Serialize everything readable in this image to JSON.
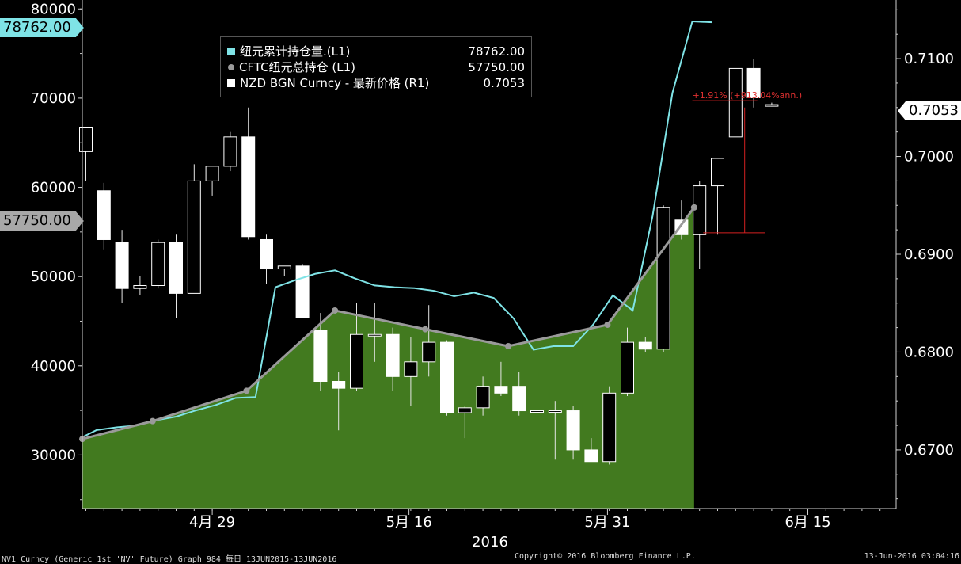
{
  "chart_data": {
    "type": "candlestick-line-area",
    "x_tick_labels": [
      "4月 29",
      "5月 16",
      "5月 31",
      "6月 15"
    ],
    "x_year_label": "2016",
    "left_axis": {
      "ticks": [
        "30000",
        "40000",
        "50000",
        "60000",
        "70000",
        "80000"
      ],
      "range": [
        24000,
        81000
      ]
    },
    "right_axis": {
      "ticks": [
        "0.6700",
        "0.6800",
        "0.6900",
        "0.7000",
        "0.7100"
      ],
      "range": [
        0.664,
        0.716
      ]
    },
    "legend": [
      {
        "name": "纽元累计持仓量.(L1)",
        "value": "78762.00",
        "color": "#7fe3e6",
        "marker": "square"
      },
      {
        "name": "CFTC纽元总持仓 (L1)",
        "value": "57750.00",
        "color": "#9a9a9a",
        "marker": "dot"
      },
      {
        "name": "NZD BGN Curncy - 最新价格 (R1)",
        "value": "0.7053",
        "color": "#ffffff",
        "marker": "square"
      }
    ],
    "last_labels": {
      "cumulative": "78762.00",
      "cftc": "57750.00",
      "price": "0.7053"
    },
    "annotation": "+1.91% (+913.04%ann.)",
    "candles": [
      {
        "o": 0.7005,
        "h": 0.703,
        "l": 0.6975,
        "c": 0.703
      },
      {
        "o": 0.6965,
        "h": 0.6973,
        "l": 0.6905,
        "c": 0.6915
      },
      {
        "o": 0.6912,
        "h": 0.6925,
        "l": 0.685,
        "c": 0.6865
      },
      {
        "o": 0.6865,
        "h": 0.6878,
        "l": 0.6858,
        "c": 0.6868
      },
      {
        "o": 0.6868,
        "h": 0.6915,
        "l": 0.6865,
        "c": 0.6912
      },
      {
        "o": 0.6912,
        "h": 0.692,
        "l": 0.6835,
        "c": 0.686
      },
      {
        "o": 0.686,
        "h": 0.6992,
        "l": 0.686,
        "c": 0.6975
      },
      {
        "o": 0.6975,
        "h": 0.699,
        "l": 0.696,
        "c": 0.699
      },
      {
        "o": 0.699,
        "h": 0.7025,
        "l": 0.6985,
        "c": 0.702
      },
      {
        "o": 0.702,
        "h": 0.705,
        "l": 0.6915,
        "c": 0.6918
      },
      {
        "o": 0.6915,
        "h": 0.692,
        "l": 0.687,
        "c": 0.6885
      },
      {
        "o": 0.6885,
        "h": 0.6888,
        "l": 0.6878,
        "c": 0.6888
      },
      {
        "o": 0.6888,
        "h": 0.689,
        "l": 0.684,
        "c": 0.6835
      },
      {
        "o": 0.6822,
        "h": 0.684,
        "l": 0.676,
        "c": 0.677
      },
      {
        "o": 0.677,
        "h": 0.678,
        "l": 0.672,
        "c": 0.6763
      },
      {
        "o": 0.6763,
        "h": 0.685,
        "l": 0.676,
        "c": 0.6818
      },
      {
        "o": 0.6818,
        "h": 0.685,
        "l": 0.679,
        "c": 0.6818
      },
      {
        "o": 0.6818,
        "h": 0.6825,
        "l": 0.676,
        "c": 0.6775
      },
      {
        "o": 0.6775,
        "h": 0.6815,
        "l": 0.6745,
        "c": 0.679
      },
      {
        "o": 0.679,
        "h": 0.6848,
        "l": 0.6775,
        "c": 0.681
      },
      {
        "o": 0.681,
        "h": 0.6812,
        "l": 0.6735,
        "c": 0.6738
      },
      {
        "o": 0.6738,
        "h": 0.6745,
        "l": 0.6712,
        "c": 0.6743
      },
      {
        "o": 0.6743,
        "h": 0.6775,
        "l": 0.6735,
        "c": 0.6765
      },
      {
        "o": 0.6765,
        "h": 0.679,
        "l": 0.6755,
        "c": 0.6758
      },
      {
        "o": 0.6765,
        "h": 0.678,
        "l": 0.6735,
        "c": 0.674
      },
      {
        "o": 0.674,
        "h": 0.6765,
        "l": 0.6715,
        "c": 0.674
      },
      {
        "o": 0.674,
        "h": 0.675,
        "l": 0.669,
        "c": 0.674
      },
      {
        "o": 0.674,
        "h": 0.6745,
        "l": 0.669,
        "c": 0.67
      },
      {
        "o": 0.67,
        "h": 0.6712,
        "l": 0.6688,
        "c": 0.6688
      },
      {
        "o": 0.6688,
        "h": 0.6765,
        "l": 0.6685,
        "c": 0.6758
      },
      {
        "o": 0.6758,
        "h": 0.6825,
        "l": 0.6755,
        "c": 0.681
      },
      {
        "o": 0.681,
        "h": 0.6815,
        "l": 0.68,
        "c": 0.6803
      },
      {
        "o": 0.6803,
        "h": 0.695,
        "l": 0.68,
        "c": 0.6948
      },
      {
        "o": 0.6935,
        "h": 0.6955,
        "l": 0.6915,
        "c": 0.692
      },
      {
        "o": 0.692,
        "h": 0.6975,
        "l": 0.6885,
        "c": 0.697
      },
      {
        "o": 0.697,
        "h": 0.6995,
        "l": 0.692,
        "c": 0.6998
      },
      {
        "o": 0.702,
        "h": 0.709,
        "l": 0.702,
        "c": 0.709
      },
      {
        "o": 0.709,
        "h": 0.71,
        "l": 0.705,
        "c": 0.706
      },
      {
        "o": 0.7053,
        "h": 0.7055,
        "l": 0.7051,
        "c": 0.7053
      }
    ],
    "cumulative_series": [
      32000,
      32800,
      33100,
      33300,
      33900,
      34300,
      35000,
      35600,
      36400,
      36500,
      48800,
      49600,
      50300,
      50700,
      49800,
      49000,
      48800,
      48700,
      48400,
      47800,
      48200,
      47600,
      45300,
      41800,
      42200,
      42200,
      44600,
      47900,
      46200,
      56800,
      70600,
      78600,
      78500
    ],
    "cftc_points": [
      {
        "i": -0.5,
        "v": 31800
      },
      {
        "i": 3.7,
        "v": 33800
      },
      {
        "i": 8.9,
        "v": 37200
      },
      {
        "i": 13.8,
        "v": 46200
      },
      {
        "i": 18.8,
        "v": 44100
      },
      {
        "i": 23.4,
        "v": 42200
      },
      {
        "i": 28.9,
        "v": 44600
      },
      {
        "i": 33.7,
        "v": 57750
      }
    ]
  },
  "footer": {
    "left": "NV1 Curncy (Generic 1st 'NV' Future) Graph 984  每日 13JUN2015-13JUN2016",
    "center": "Copyright© 2016 Bloomberg Finance L.P.",
    "right": "13-Jun-2016 03:04:16"
  }
}
